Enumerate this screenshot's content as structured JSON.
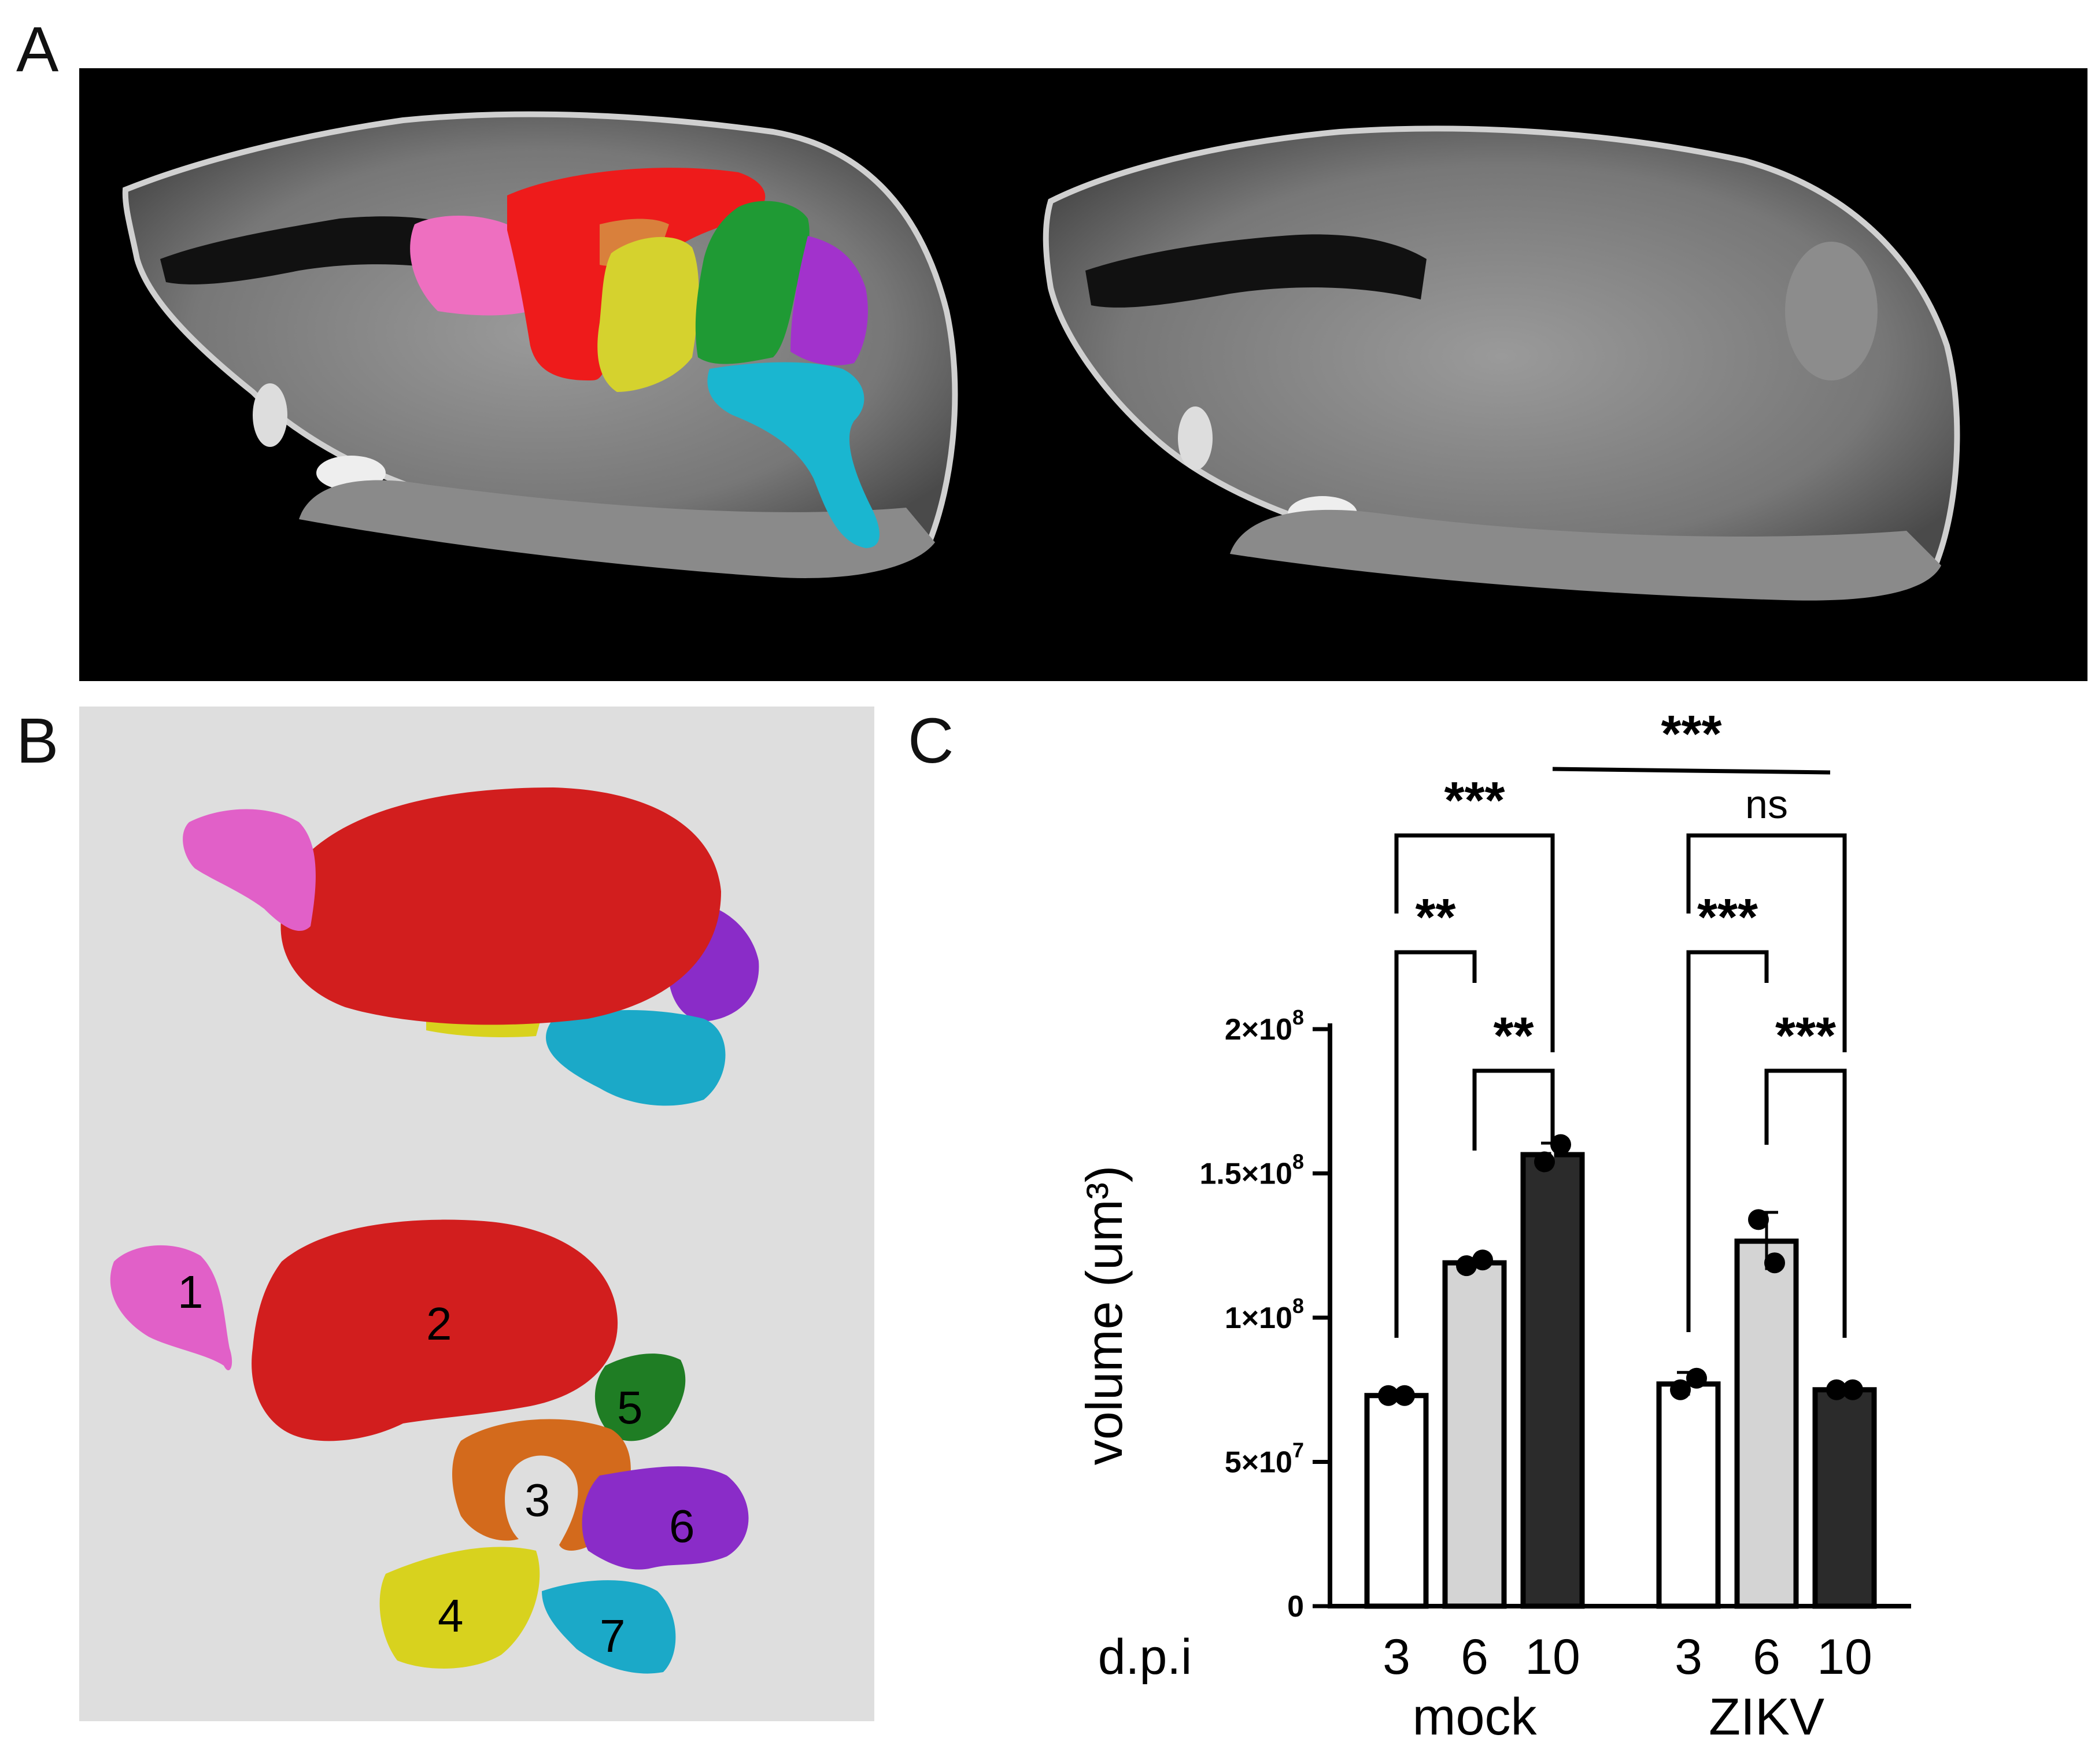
{
  "panels": {
    "a_letter": "A",
    "b_letter": "B",
    "c_letter": "C"
  },
  "panel_b": {
    "region_labels": [
      "1",
      "2",
      "3",
      "4",
      "5",
      "6",
      "7"
    ],
    "region_colors": [
      "#e160c8",
      "#d21e1e",
      "#d36a1c",
      "#d8d21e",
      "#1f7d24",
      "#8a2cc8",
      "#1ba9c8"
    ]
  },
  "chart_data": {
    "type": "bar",
    "ylabel": "volume (um³)",
    "ylim": [
      0,
      200000000
    ],
    "yticks": [
      {
        "value": 0,
        "label": "0"
      },
      {
        "value": 50000000,
        "base": "5×10",
        "exp": "7"
      },
      {
        "value": 100000000,
        "base": "1×10",
        "exp": "8"
      },
      {
        "value": 150000000,
        "base": "1.5×10",
        "exp": "8"
      },
      {
        "value": 200000000,
        "base": "2×10",
        "exp": "8"
      }
    ],
    "x_title": "d.p.i",
    "groups": [
      {
        "name": "mock",
        "bars": [
          {
            "dpi": "3",
            "value": 73000000,
            "err": 1000000,
            "points": [
              73000000,
              73000000
            ],
            "color": "#ffffff"
          },
          {
            "dpi": "6",
            "value": 119000000,
            "err": 1500000,
            "points": [
              118000000,
              120000000
            ],
            "color": "#d4d4d4"
          },
          {
            "dpi": "10",
            "value": 156500000,
            "err": 4000000,
            "points": [
              154000000,
              160000000
            ],
            "color": "#2b2b2b"
          }
        ]
      },
      {
        "name": "ZIKV",
        "bars": [
          {
            "dpi": "3",
            "value": 77000000,
            "err": 4000000,
            "points": [
              75000000,
              79000000
            ],
            "color": "#ffffff"
          },
          {
            "dpi": "6",
            "value": 126500000,
            "err": 10000000,
            "points": [
              134000000,
              119000000
            ],
            "color": "#d4d4d4"
          },
          {
            "dpi": "10",
            "value": 75000000,
            "err": 1000000,
            "points": [
              75000000,
              75000000
            ],
            "color": "#2b2b2b"
          }
        ]
      }
    ],
    "significance": [
      {
        "label": "**",
        "group": 0,
        "from": 0,
        "to": 1
      },
      {
        "label": "**",
        "group": 0,
        "from": 1,
        "to": 2
      },
      {
        "label": "***",
        "group": 0,
        "from": 0,
        "to": 2
      },
      {
        "label": "***",
        "group": 1,
        "from": 0,
        "to": 1
      },
      {
        "label": "***",
        "group": 1,
        "from": 1,
        "to": 2
      },
      {
        "label": "ns",
        "group": 1,
        "from": 0,
        "to": 2
      },
      {
        "label": "***",
        "type": "between-groups"
      }
    ]
  }
}
